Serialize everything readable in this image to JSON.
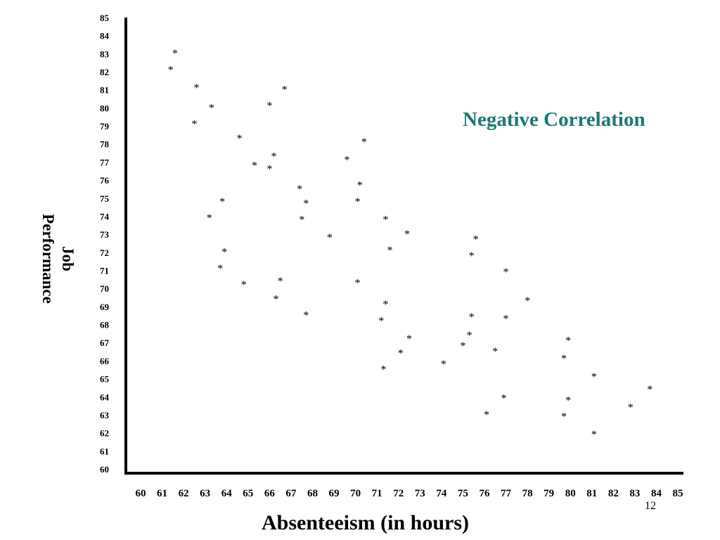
{
  "chart_data": {
    "type": "scatter",
    "title": "Negative Correlation",
    "xlabel": "Absenteeism (in hours)",
    "ylabel_lines": [
      "Job",
      "Performance"
    ],
    "xlim": [
      60,
      85
    ],
    "ylim": [
      60,
      85
    ],
    "x_ticks": [
      "60",
      "61",
      "62",
      "63",
      "64",
      "65",
      "66",
      "67",
      "68",
      "69",
      "70",
      "71",
      "72",
      "73",
      "74",
      "75",
      "76",
      "77",
      "78",
      "79",
      "80",
      "81",
      "82",
      "83",
      "84",
      "85"
    ],
    "y_ticks": [
      "85",
      "84",
      "83",
      "82",
      "81",
      "80",
      "79",
      "78",
      "77",
      "76",
      "75",
      "74",
      "73",
      "72",
      "71",
      "70",
      "69",
      "68",
      "67",
      "66",
      "65",
      "64",
      "63",
      "62",
      "61",
      "60"
    ],
    "marker": "*",
    "grid": false,
    "points": [
      {
        "x": 61.6,
        "y": 83.2
      },
      {
        "x": 61.4,
        "y": 82.3
      },
      {
        "x": 62.6,
        "y": 81.3
      },
      {
        "x": 63.3,
        "y": 80.2
      },
      {
        "x": 62.5,
        "y": 79.3
      },
      {
        "x": 66.0,
        "y": 80.3
      },
      {
        "x": 66.7,
        "y": 81.2
      },
      {
        "x": 64.6,
        "y": 78.5
      },
      {
        "x": 66.2,
        "y": 77.5
      },
      {
        "x": 65.3,
        "y": 77.0
      },
      {
        "x": 66.0,
        "y": 76.8
      },
      {
        "x": 69.6,
        "y": 77.3
      },
      {
        "x": 70.4,
        "y": 78.3
      },
      {
        "x": 67.4,
        "y": 75.7
      },
      {
        "x": 67.7,
        "y": 74.9
      },
      {
        "x": 67.5,
        "y": 74.0
      },
      {
        "x": 70.2,
        "y": 75.9
      },
      {
        "x": 70.1,
        "y": 75.0
      },
      {
        "x": 63.8,
        "y": 75.0
      },
      {
        "x": 63.2,
        "y": 74.1
      },
      {
        "x": 68.8,
        "y": 73.0
      },
      {
        "x": 71.4,
        "y": 74.0
      },
      {
        "x": 72.4,
        "y": 73.2
      },
      {
        "x": 71.6,
        "y": 72.3
      },
      {
        "x": 75.6,
        "y": 72.9
      },
      {
        "x": 75.4,
        "y": 72.0
      },
      {
        "x": 63.9,
        "y": 72.2
      },
      {
        "x": 63.7,
        "y": 71.3
      },
      {
        "x": 66.5,
        "y": 70.6
      },
      {
        "x": 64.8,
        "y": 70.4
      },
      {
        "x": 66.3,
        "y": 69.6
      },
      {
        "x": 70.1,
        "y": 70.5
      },
      {
        "x": 67.7,
        "y": 68.7
      },
      {
        "x": 71.4,
        "y": 69.3
      },
      {
        "x": 71.2,
        "y": 68.4
      },
      {
        "x": 77.0,
        "y": 71.1
      },
      {
        "x": 78.0,
        "y": 69.5
      },
      {
        "x": 75.4,
        "y": 68.6
      },
      {
        "x": 77.0,
        "y": 68.5
      },
      {
        "x": 75.3,
        "y": 67.6
      },
      {
        "x": 72.5,
        "y": 67.4
      },
      {
        "x": 72.1,
        "y": 66.6
      },
      {
        "x": 71.3,
        "y": 65.7
      },
      {
        "x": 75.0,
        "y": 67.0
      },
      {
        "x": 76.5,
        "y": 66.7
      },
      {
        "x": 74.1,
        "y": 66.0
      },
      {
        "x": 79.9,
        "y": 67.3
      },
      {
        "x": 79.7,
        "y": 66.3
      },
      {
        "x": 81.1,
        "y": 65.3
      },
      {
        "x": 83.7,
        "y": 64.6
      },
      {
        "x": 82.8,
        "y": 63.6
      },
      {
        "x": 76.9,
        "y": 64.1
      },
      {
        "x": 76.1,
        "y": 63.2
      },
      {
        "x": 79.9,
        "y": 64.0
      },
      {
        "x": 79.7,
        "y": 63.1
      },
      {
        "x": 81.1,
        "y": 62.1
      }
    ]
  },
  "page_number": "12"
}
